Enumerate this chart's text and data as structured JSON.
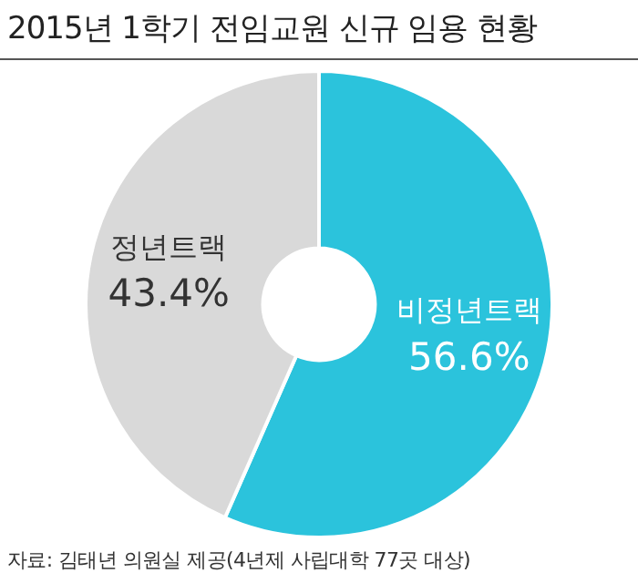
{
  "chart_data": {
    "type": "donut",
    "title": "2015년 1학기 전임교원 신규 임용 현황",
    "categories": [
      "비정년트랙",
      "정년트랙"
    ],
    "values": [
      56.6,
      43.4
    ],
    "value_labels": [
      "56.6%",
      "43.4%"
    ],
    "colors": [
      "#2bc3dc",
      "#d9d9d9"
    ],
    "annotations": [
      "자료: 김태년 의원실 제공(4년제 사립대학 77곳 대상)"
    ]
  }
}
